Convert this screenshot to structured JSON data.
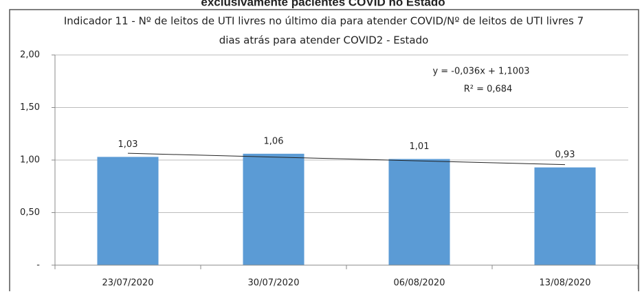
{
  "chart_data": {
    "type": "bar",
    "heading": "exclusivamente pacientes COVID no Estado",
    "title": [
      "Indicador 11 - Nº de leitos de UTI livres no último dia para atender COVID/Nº de leitos de UTI livres 7",
      "dias atrás para atender COVID2 - Estado"
    ],
    "categories": [
      "23/07/2020",
      "30/07/2020",
      "06/08/2020",
      "13/08/2020"
    ],
    "values": [
      1.03,
      1.06,
      1.01,
      0.93
    ],
    "value_labels": [
      "1,03",
      "1,06",
      "1,01",
      "0,93"
    ],
    "color": "#5b9bd5",
    "ylim": [
      0,
      2
    ],
    "yticks": [
      {
        "value": 0,
        "label": "-"
      },
      {
        "value": 0.5,
        "label": "0,50"
      },
      {
        "value": 1,
        "label": "1,00"
      },
      {
        "value": 1.5,
        "label": "1,50"
      },
      {
        "value": 2,
        "label": "2,00"
      }
    ],
    "grid": true,
    "trendline": {
      "slope": -0.036,
      "intercept": 1.1003,
      "label": "y = -0,036x + 1,1003",
      "r2_label": "R² = 0,684"
    }
  }
}
